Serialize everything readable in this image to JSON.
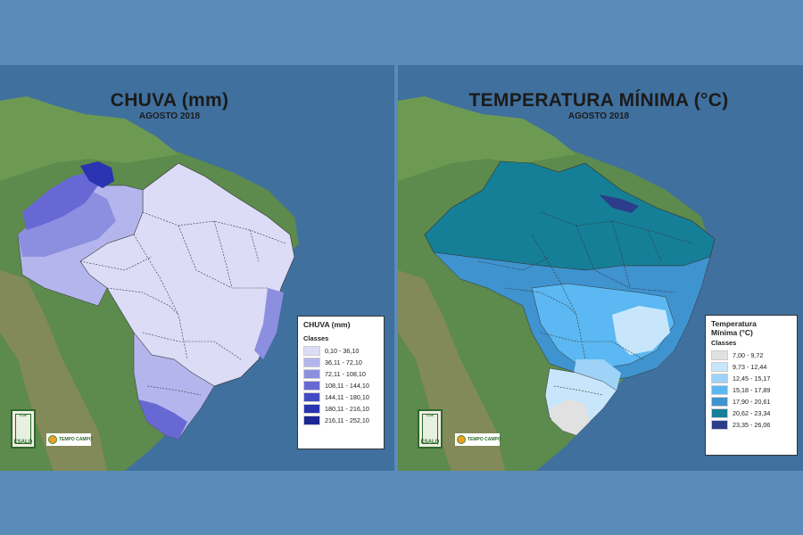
{
  "maps": {
    "rain": {
      "title": "CHUVA (mm)",
      "subtitle": "AGOSTO 2018",
      "legend_title": "CHUVA (mm)",
      "legend_classes_label": "Classes",
      "classes": [
        {
          "label": "0,10 - 36,10",
          "color": "#dcdcf7"
        },
        {
          "label": "36,11 - 72,10",
          "color": "#b4b5ec"
        },
        {
          "label": "72,11 - 108,10",
          "color": "#8c8fe0"
        },
        {
          "label": "108,11 - 144,10",
          "color": "#6768d3"
        },
        {
          "label": "144,11 - 180,10",
          "color": "#4449c4"
        },
        {
          "label": "180,11 - 216,10",
          "color": "#2a33b0"
        },
        {
          "label": "216,11 - 252,10",
          "color": "#1b2694"
        }
      ]
    },
    "temp": {
      "title": "TEMPERATURA MÍNIMA (°C)",
      "subtitle": "AGOSTO 2018",
      "legend_title": "Temperatura Mínima (°C)",
      "legend_classes_label": "Classes",
      "classes": [
        {
          "label": "7,00 - 9,72",
          "color": "#e1e1e1"
        },
        {
          "label": "9,73 - 12,44",
          "color": "#c8e6fb"
        },
        {
          "label": "12,45 - 15,17",
          "color": "#9ed2f7"
        },
        {
          "label": "15,18 - 17,89",
          "color": "#5bb8f2"
        },
        {
          "label": "17,90 - 20,61",
          "color": "#3f93cf"
        },
        {
          "label": "20,62 - 23,34",
          "color": "#157f98"
        },
        {
          "label": "23,35 - 26,06",
          "color": "#2c3d8a"
        }
      ]
    }
  },
  "logos": {
    "left_logo_text": "ESALQ",
    "left_logo_top": "LCE",
    "right_logo_text": "ESALQ",
    "right_logo_top": "LCE",
    "partner_text": "TEMPO CAMPO"
  }
}
